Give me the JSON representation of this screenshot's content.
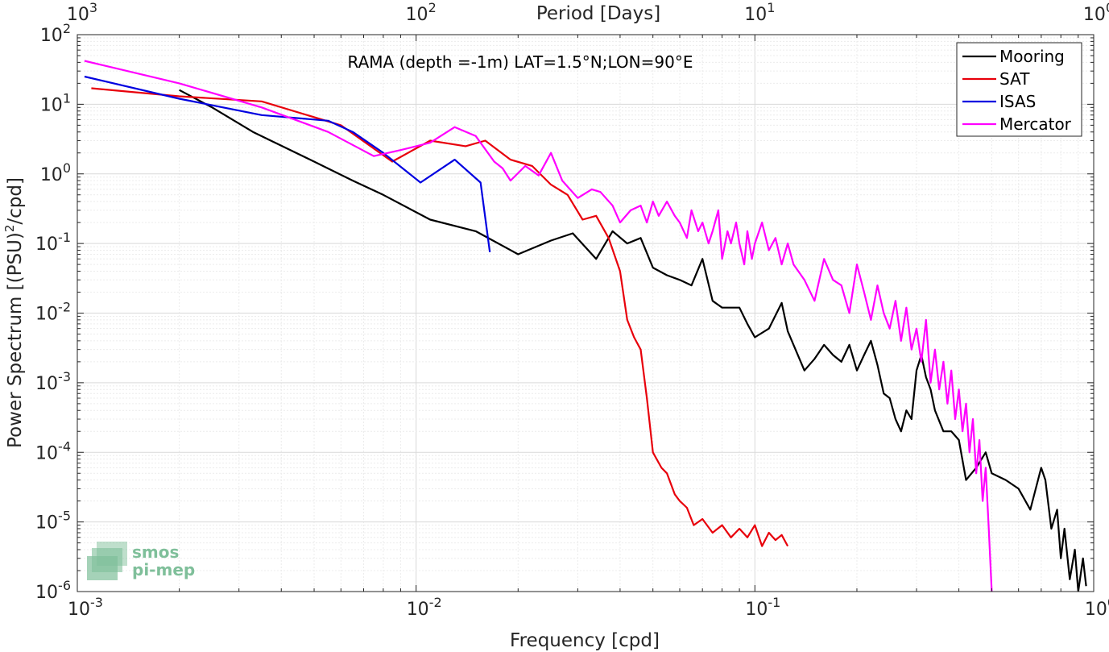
{
  "chart_data": {
    "type": "line",
    "title": "RAMA (depth =-1m) LAT=1.5°N;LON=90°E",
    "xlabel": "Frequency [cpd]",
    "ylabel": "Power Spectrum [(PSU)",
    "ylabel_sup": "2",
    "ylabel_tail": "/cpd]",
    "x2label": "Period [Days]",
    "xscale": "log",
    "yscale": "log",
    "xlim": [
      0.001,
      1
    ],
    "ylim": [
      1e-06,
      100
    ],
    "grid": true,
    "legend_position": "top-right",
    "x_ticks": [
      {
        "value": 0.001,
        "base": "10",
        "exp": "-3"
      },
      {
        "value": 0.01,
        "base": "10",
        "exp": "-2"
      },
      {
        "value": 0.1,
        "base": "10",
        "exp": "-1"
      },
      {
        "value": 1,
        "base": "10",
        "exp": "0"
      }
    ],
    "x2_ticks": [
      {
        "value": 0.001,
        "base": "10",
        "exp": "3"
      },
      {
        "value": 0.01,
        "base": "10",
        "exp": "2"
      },
      {
        "value": 0.1,
        "base": "10",
        "exp": "1"
      },
      {
        "value": 1,
        "base": "10",
        "exp": "0"
      }
    ],
    "y_ticks": [
      {
        "value": 100,
        "base": "10",
        "exp": "2"
      },
      {
        "value": 10,
        "base": "10",
        "exp": "1"
      },
      {
        "value": 1,
        "base": "10",
        "exp": "0"
      },
      {
        "value": 0.1,
        "base": "10",
        "exp": "-1"
      },
      {
        "value": 0.01,
        "base": "10",
        "exp": "-2"
      },
      {
        "value": 0.001,
        "base": "10",
        "exp": "-3"
      },
      {
        "value": 0.0001,
        "base": "10",
        "exp": "-4"
      },
      {
        "value": 1e-05,
        "base": "10",
        "exp": "-5"
      },
      {
        "value": 1e-06,
        "base": "10",
        "exp": "-6"
      }
    ],
    "series": [
      {
        "name": "Mooring",
        "color": "#000000",
        "x": [
          0.002,
          0.0025,
          0.0033,
          0.005,
          0.0065,
          0.008,
          0.011,
          0.015,
          0.02,
          0.025,
          0.029,
          0.034,
          0.038,
          0.042,
          0.046,
          0.05,
          0.055,
          0.06,
          0.065,
          0.07,
          0.075,
          0.08,
          0.09,
          0.095,
          0.1,
          0.11,
          0.12,
          0.125,
          0.13,
          0.14,
          0.15,
          0.16,
          0.17,
          0.18,
          0.19,
          0.2,
          0.21,
          0.22,
          0.23,
          0.24,
          0.25,
          0.26,
          0.27,
          0.28,
          0.29,
          0.3,
          0.31,
          0.32,
          0.33,
          0.34,
          0.36,
          0.38,
          0.4,
          0.42,
          0.45,
          0.48,
          0.5,
          0.55,
          0.6,
          0.65,
          0.7,
          0.72,
          0.75,
          0.78,
          0.8,
          0.82,
          0.85,
          0.88,
          0.9,
          0.93,
          0.95
        ],
        "y": [
          16,
          9,
          4,
          1.5,
          0.8,
          0.5,
          0.22,
          0.15,
          0.07,
          0.11,
          0.14,
          0.06,
          0.15,
          0.1,
          0.12,
          0.045,
          0.035,
          0.03,
          0.025,
          0.06,
          0.015,
          0.012,
          0.012,
          0.007,
          0.0045,
          0.006,
          0.014,
          0.0055,
          0.0035,
          0.0015,
          0.0022,
          0.0035,
          0.0025,
          0.002,
          0.0035,
          0.0015,
          0.0025,
          0.004,
          0.0018,
          0.0007,
          0.0006,
          0.0003,
          0.0002,
          0.0004,
          0.0003,
          0.0015,
          0.0025,
          0.0012,
          0.0008,
          0.0004,
          0.0002,
          0.0002,
          0.00015,
          4e-05,
          6e-05,
          0.0001,
          5e-05,
          4e-05,
          3e-05,
          1.5e-05,
          6e-05,
          4e-05,
          8e-06,
          1.5e-05,
          3e-06,
          8e-06,
          1.5e-06,
          4e-06,
          1e-06,
          3e-06,
          1.2e-06
        ]
      },
      {
        "name": "SAT",
        "color": "#e8000b",
        "x": [
          0.0011,
          0.002,
          0.0035,
          0.006,
          0.0085,
          0.011,
          0.014,
          0.016,
          0.019,
          0.022,
          0.025,
          0.028,
          0.031,
          0.034,
          0.037,
          0.04,
          0.042,
          0.044,
          0.046,
          0.048,
          0.05,
          0.053,
          0.055,
          0.058,
          0.06,
          0.063,
          0.066,
          0.07,
          0.075,
          0.08,
          0.085,
          0.09,
          0.095,
          0.1,
          0.105,
          0.11,
          0.115,
          0.12,
          0.125
        ],
        "y": [
          17,
          13,
          11,
          5,
          1.5,
          3,
          2.5,
          3,
          1.6,
          1.3,
          0.7,
          0.5,
          0.22,
          0.25,
          0.12,
          0.04,
          0.008,
          0.0045,
          0.003,
          0.0006,
          0.0001,
          6e-05,
          5e-05,
          2.5e-05,
          2e-05,
          1.6e-05,
          9e-06,
          1.1e-05,
          7e-06,
          9e-06,
          6e-06,
          8e-06,
          6e-06,
          9e-06,
          4.5e-06,
          7e-06,
          5.5e-06,
          6.5e-06,
          4.5e-06
        ]
      },
      {
        "name": "ISAS",
        "color": "#0000e0",
        "x": [
          0.00105,
          0.002,
          0.0035,
          0.0055,
          0.0065,
          0.008,
          0.0103,
          0.013,
          0.0155,
          0.0165
        ],
        "y": [
          25,
          12,
          7,
          5.8,
          4,
          2,
          0.75,
          1.6,
          0.75,
          0.075
        ]
      },
      {
        "name": "Mercator",
        "color": "#ff00ff",
        "x": [
          0.00105,
          0.002,
          0.0035,
          0.0055,
          0.0075,
          0.009,
          0.011,
          0.013,
          0.015,
          0.017,
          0.018,
          0.019,
          0.021,
          0.023,
          0.025,
          0.027,
          0.03,
          0.033,
          0.035,
          0.038,
          0.04,
          0.043,
          0.046,
          0.048,
          0.05,
          0.052,
          0.055,
          0.058,
          0.06,
          0.063,
          0.065,
          0.068,
          0.07,
          0.073,
          0.075,
          0.078,
          0.08,
          0.083,
          0.085,
          0.088,
          0.09,
          0.093,
          0.095,
          0.098,
          0.1,
          0.105,
          0.11,
          0.115,
          0.12,
          0.125,
          0.13,
          0.14,
          0.15,
          0.16,
          0.17,
          0.18,
          0.19,
          0.2,
          0.21,
          0.22,
          0.23,
          0.24,
          0.25,
          0.26,
          0.27,
          0.28,
          0.29,
          0.3,
          0.31,
          0.32,
          0.33,
          0.34,
          0.35,
          0.36,
          0.37,
          0.38,
          0.39,
          0.4,
          0.41,
          0.42,
          0.43,
          0.44,
          0.45,
          0.46,
          0.47,
          0.48,
          0.49,
          0.5
        ],
        "y": [
          42,
          20,
          9,
          4,
          1.8,
          2.2,
          2.8,
          4.7,
          3.5,
          1.5,
          1.2,
          0.8,
          1.3,
          0.95,
          2,
          0.8,
          0.45,
          0.6,
          0.55,
          0.35,
          0.2,
          0.3,
          0.35,
          0.2,
          0.4,
          0.25,
          0.4,
          0.25,
          0.2,
          0.12,
          0.3,
          0.15,
          0.2,
          0.1,
          0.15,
          0.3,
          0.06,
          0.15,
          0.1,
          0.2,
          0.1,
          0.05,
          0.15,
          0.06,
          0.1,
          0.2,
          0.08,
          0.12,
          0.05,
          0.1,
          0.05,
          0.03,
          0.015,
          0.06,
          0.03,
          0.025,
          0.01,
          0.05,
          0.02,
          0.008,
          0.025,
          0.01,
          0.006,
          0.015,
          0.004,
          0.012,
          0.003,
          0.006,
          0.002,
          0.008,
          0.001,
          0.003,
          0.0008,
          0.002,
          0.0005,
          0.0015,
          0.0003,
          0.0008,
          0.0002,
          0.0005,
          0.0001,
          0.0003,
          5e-05,
          0.00015,
          2e-05,
          6e-05,
          8e-06,
          1e-06
        ]
      }
    ]
  },
  "logo": {
    "line1": "smos",
    "line2": "pi-mep"
  }
}
